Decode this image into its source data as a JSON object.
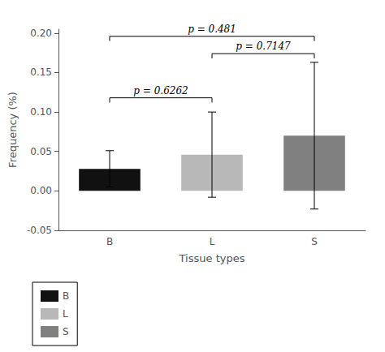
{
  "chart_data": {
    "type": "bar",
    "categories": [
      "B",
      "L",
      "S"
    ],
    "values": [
      0.028,
      0.046,
      0.07
    ],
    "errors": [
      0.023,
      0.054,
      0.093
    ],
    "colors": [
      "#111111",
      "#b8b8b8",
      "#808080"
    ],
    "xlabel": "Tissue types",
    "ylabel": "Frequency (%)",
    "ylim": [
      -0.05,
      0.205
    ],
    "yticks": [
      -0.05,
      {
        "value": 0,
        "label": "0.00"
      },
      0.05,
      {
        "value": 0.1,
        "label": "0.10"
      },
      0.15,
      {
        "value": 0.2,
        "label": "0.20"
      }
    ],
    "annotations": [
      {
        "text": "p = 0.481",
        "from": "B",
        "to": "S",
        "y": 0.196
      },
      {
        "text": "p = 0.7147",
        "from": "L",
        "to": "S",
        "y": 0.174
      },
      {
        "text": "p = 0.6262",
        "from": "B",
        "to": "L",
        "y": 0.118
      }
    ],
    "grid": false,
    "legend": "bottom"
  }
}
